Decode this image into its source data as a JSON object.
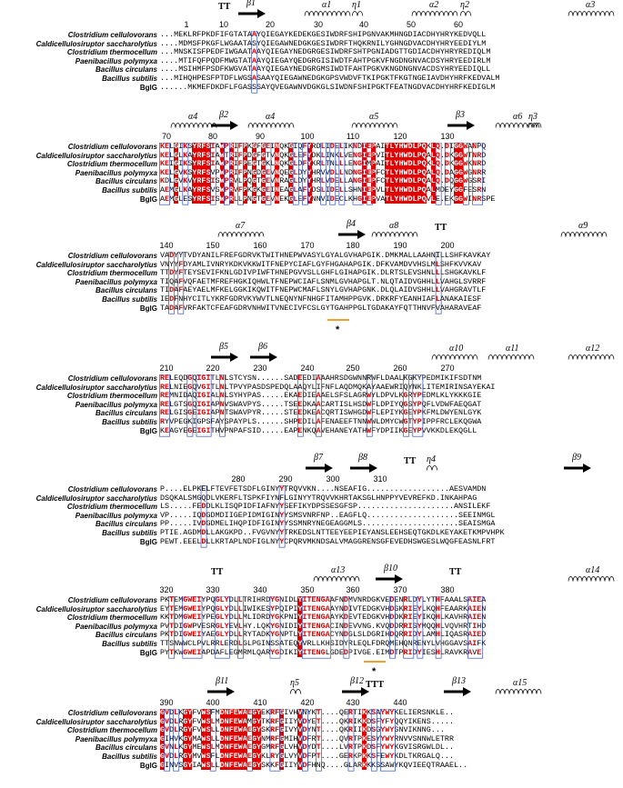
{
  "figure": {
    "species": [
      {
        "name": "Clostridium cellulovorans",
        "italic": true
      },
      {
        "name": "Caldicellulosiruptor saccharolytius",
        "italic": true
      },
      {
        "name": "Clostridium thermocellum",
        "italic": true
      },
      {
        "name": "Paenibacillus polymyxa",
        "italic": true
      },
      {
        "name": "Bacillus circulans",
        "italic": true
      },
      {
        "name": "Bacillus subtilis",
        "italic": true
      },
      {
        "name": "BglG",
        "italic": false
      }
    ],
    "colors": {
      "conserved_bg": "#e00000",
      "similar_fg": "#e00000",
      "box": "#3050c0",
      "marker_line": "#f0a030"
    },
    "blocks": [
      {
        "id": "block-1",
        "secondary_structure": [
          {
            "type": "turn",
            "label": "TT"
          },
          {
            "type": "strand",
            "label": "β1"
          },
          {
            "type": "helix",
            "label": "α1"
          },
          {
            "type": "eta",
            "label": "η1"
          },
          {
            "type": "helix",
            "label": "α2"
          },
          {
            "type": "eta",
            "label": "η2"
          },
          {
            "type": "helix",
            "label": "α3"
          }
        ],
        "numbers": [
          "1",
          "10",
          "20",
          "30",
          "40",
          "50",
          "60"
        ],
        "sequences": [
          "...MEKLRFPKDFIFGTATAAYQIEGAYKEDEKGESIWDRFSHIPGNVAKMHNGDIACDHYHRYKEDVQLL",
          "....MDMSFPKGFLWGAATASYQIEGAWNEDGKGESIWDRFTHQKRNILYGHNGDVACDHYHRYEEDIYLM",
          "...MNSKISFPEDFIWGAATAAYQIEGAYNEDGRGESIWDRFSHTPGNIADGTTGDIACDHYHRYREDIQLM",
          "....MTIFQFPQDFMWGTATAAYQIEGAYQEDGRGISIWDTFAHTPGKVFNGDNGNVACDSYHRYEEDIRLM",
          "....MSIHMFPSDFKWGVATAAYQIEGAYNEDGRGMSIWDTFAHTPGKVKNGDNGNVACDSYHRYEEDIQLL",
          "...MIHQHPESFPTDFLWGSASAAYQIEGAWNEDGKGPSVWDVFTKIPGKTFKGTNGEIAVDHYHRFKEDVALM",
          "......MKMEFDKDFLFGASSSAYQVEGAWNVDGKGLSIWDNFSHIPGKTFEATNGDVACDHYHRFKEDIGLM"
        ]
      },
      {
        "id": "block-2",
        "secondary_structure": [
          {
            "type": "helix",
            "label": "α4"
          },
          {
            "type": "strand",
            "label": "β2"
          },
          {
            "type": "helix",
            "label": "α4"
          },
          {
            "type": "helix",
            "label": "α5"
          },
          {
            "type": "strand",
            "label": "β3"
          },
          {
            "type": "helix",
            "label": "α6"
          },
          {
            "type": "eta",
            "label": "η3"
          }
        ],
        "numbers": [
          "70",
          "80",
          "90",
          "100",
          "110",
          "120",
          "130"
        ],
        "sequences": [
          "KELGIKSYRFSIAWPRIFPKGFGEINQKGIQFYRDLIDELIKNDIEPAITLYHWDLPQKLQ.DIGGWANPQ",
          "KELGLKAYRFSIAWTRIFPDGFGTVNQKGLEFYDKLINKLVENGIEPVITLYHWDLPQALQ.DKGGWTNRD",
          "KEIGIKSYRFSIAWPRIFPEGTGKLNQKGLDFYKRLTNLLLENGIMPAITLYHWDLPQKLQ.DKGGWKNRD",
          "KELGVKSYRFSVPWPRIFPNGDGEVNQEGLDYYHRVVDLLNDNGIEPFCTLYHWDLPQALQ.DAGGWGNRR",
          "KDLGVKVYRFSISWPRVLPQGTGEVNRAGLDYYHRLVDELLANGIEPFCTLYHWDLPQALQ.DQGGWGSRI",
          "AEMGLKAYRFSVSWPRVFPKGKGEINEAGLAFYDSLIDELLSHNIEPVLTLYHWDLPQALMDEYGGFESRN",
          "AEMGLESYRFSISWPRLLPNGTGEVNEKGLEFYNNVIDECLKHGIEPVATLYHWDLPQVLE.EKGGWINRSPE"
        ]
      },
      {
        "id": "block-3",
        "secondary_structure": [
          {
            "type": "helix",
            "label": "α7"
          },
          {
            "type": "strand",
            "label": "β4"
          },
          {
            "type": "helix",
            "label": "α8"
          },
          {
            "type": "turn",
            "label": "TT"
          },
          {
            "type": "helix",
            "label": "α9"
          }
        ],
        "numbers": [
          "140",
          "150",
          "160",
          "170",
          "180",
          "190",
          "200"
        ],
        "sequences": [
          "VADYYTVDYANILFREFGDRVKTWITHNEPWVASYLGYALGVHAPGIK.DMKMALLAAHNILLSHFKAVKAY",
          "VNYYFDYAMLIVNRYKDKVKKWITFNEPYCIAFLGYFHGAHAPGIK.DFKVAMDVVHSLMLSHFKVVKAV",
          "TTDYFTEYSEVIFKNLGDIVPIWFTHNEPGVVSLLGHFLGIHAPGIK.DLRTSLEVSHNLLLSHGKAVKLF",
          "TIQAFVQFAETMFREFHGKIQHWLTFNEPWCIAFLSNMLGVHAPGLT.NLQTAIDVGHHLLVAHGLSVRRF",
          "TIDAFAEYAELMFKELGGKIKQWITFNEPWCMAFLSNYLGVHAPGNK.DLQLAIDVSHHLLVAHGRAVTLF",
          "IEDFNHYCITLYKRFGDRVKYWVTLNEQNYNFNHGFITAMHPPGVK.DRKRFYEANHIAFLANAKAIESF",
          "TADAFVRFAKTCFEAFGDRVNHWITVNECIVFCSLGYTGAHPPGLTGDAKAYFQTTHNVFVAHARAVEAF"
        ]
      },
      {
        "id": "block-4",
        "secondary_structure": [
          {
            "type": "strand",
            "label": "β5"
          },
          {
            "type": "strand",
            "label": "β6"
          },
          {
            "type": "helix",
            "label": "α10"
          },
          {
            "type": "helix",
            "label": "α11"
          },
          {
            "type": "helix",
            "label": "α12"
          }
        ],
        "numbers": [
          "210",
          "220",
          "230",
          "240",
          "250",
          "260",
          "270"
        ],
        "sequences": [
          "RELEQDGQIGITLNLSTCYSN......SADEEDIAAAHRSDGWNNRWFLDAALKGKYPEDMIKIFSDTNM",
          "RELNIEGQVGITLNLTPVYPASDSPEDQLAAQYLIFNFLAQDMQKAYAAEWRIQYNKLITEMIRINSAYEKAI",
          "REMNIDAQIGIALNLSYHYPAS.....EKAEDIEAAELSFSLAGRWYLDPVLKGRYPEDMLKLYKKKGIE",
          "RELGTSGQIGIAPNVSWAVPYS.....TSEEDKAACARTISLHSDWFLDPIYQGSYPQFLVDWFAEQGAT",
          "RELGISGEIGIAPNTSWAVPYR.....STEEDKEACQRTISWHGDWFLEPIYKGEYPKFMLDWYENLGYK",
          "RYVPEGKIGPSFAYSPAYPLS......SHPEDILAFENAEEFTNNWWLDMYCWGTYPIPPFRCLEKQGWA",
          "KEAGYEGEIGITHVPNPAFSID.....EAPENKQAVEHANEYATHWFYDPIIKGEYPVVKKDLEKQGLL"
        ]
      },
      {
        "id": "block-5",
        "secondary_structure": [
          {
            "type": "strand",
            "label": "β7"
          },
          {
            "type": "strand",
            "label": "β8"
          },
          {
            "type": "turn",
            "label": "TT"
          },
          {
            "type": "eta",
            "label": "η4"
          },
          {
            "type": "strand",
            "label": "β9"
          }
        ],
        "numbers": [
          "280",
          "290",
          "300",
          "310"
        ],
        "sequences": [
          "P....ELPKELFTEVFETSDFLGINYYTRQVVKN....NSEAFIG..................AESVAMDN",
          "DSQKALSMGQDLVKERFLTSPKFIYNFLGINYYTRQVVKHRTAKSGLHNPPYVEVREFKD.INKAHPAG",
          "LS.....FEDDLKLISQPIDFIAFNYYSEFIKYDPSSESGFSP.....................ANSILEKF",
          "VP.....IQDGDMDIIGEPIDMIGINYYSMSVNRFNP..EAGFLQ....................SEEINMGL",
          "PP.....IVDGDMELIHQPIDFIGINYYSSMNRYNEGEAGGMLS.....................SEAISMGA",
          "PTIE.AGDMDLLAKGKPD..FVGVNYYTRKEDSLNTTEEYEEPIEYANSLEEHSEQTGKDLKEYAKETKMPVHPK",
          "PEWT.EEELDLLKRTAPLNDFIGLNYYCPQRVMKNDSALVMAGGRENSGFEVEDHSWGESLWQGFEASNLFRT"
        ]
      },
      {
        "id": "block-6",
        "secondary_structure": [
          {
            "type": "turn",
            "label": "TT"
          },
          {
            "type": "helix",
            "label": "α13"
          },
          {
            "type": "strand",
            "label": "β10"
          },
          {
            "type": "turn",
            "label": "TT"
          },
          {
            "type": "helix",
            "label": "α14"
          }
        ],
        "numbers": [
          "320",
          "330",
          "340",
          "350",
          "360",
          "370",
          "380"
        ],
        "sequences": [
          "PKTEMGWEIYPQGLYDLLTRIHRDYGNIDLYITENGAAFNDMVNRDGKVEDENRLDYLYTHFAAALSAIEA",
          "EYTEMGWEIYPQGLYDLLIWIKESYPQIPIYITENGAAYNDIVTEDGKVHDSKRIEYLKQHFEAARKAIEN",
          "KKTDMGWEIYPEGLYDLLMLIDRDYGKPNIYITENGAAYKDEVTEDGKVHDDKRIEYIKQHLKAVHRAIEN",
          "PVTDIGWPVESRGLYEVLHY.LQKYGNIDIYITENGACINDEVVNG.KVQDDRRISYMQQHLVQVHRTIHD",
          "PKTDIGWEIYAEGLYDLLRYTADKYGNPTLYITENGACYNDGLSLDGRIHDQRRIDYLAMHLIQASRAIED",
          "TTSNWWCLPVLRRLERDLGLPGINSSATEQYVRLLKHSIDYRLEQLFDRQMEHQNRENYLVHGGAVSAIFK",
          "PYTKWGWEIAPDAFLEGMRMLQARYGDIKIYITENGLGDEDPIVGE.EIMDTPRIDYIESHLRAVKRAVE"
        ]
      },
      {
        "id": "block-7",
        "secondary_structure": [
          {
            "type": "strand",
            "label": "β11"
          },
          {
            "type": "eta",
            "label": "η5"
          },
          {
            "type": "strand",
            "label": "β12"
          },
          {
            "type": "turn",
            "label": "TTT"
          },
          {
            "type": "strand",
            "label": "β13"
          },
          {
            "type": "helix",
            "label": "α15"
          }
        ],
        "numbers": [
          "390",
          "400",
          "410",
          "420",
          "430",
          "440"
        ],
        "sequences": [
          "GVDLKGYFVWSFMDNFEWAEGYEKRFGIVHVNYKT....QERTIKKSAYWYKELIERSNKLE..",
          "GVDLRGYFVWSLMDNFEWAMGYTKRFGIIYVDYET....QKRIKKDSFYFYQQYIKENS.....",
          "GVDLRGYFVWSLLDNFEWAEGYSKRFGIVYVDYNT....QKRIIKDSGYWYSNVIKNNG...",
          "GIHVKGYMAWSLLDNFEWAEGYNMRFGMIHVDFRT....QVRTPKESYYWYRNVVSNNWLETRR",
          "GVNLKGYMEWSLMDNFEWAEGYGMRFGLVHVDYDT....LVRTPKDSFYWYKGVISRGWLDL..",
          "GVDLRGYMVWSFLDNFEWAEGYKLRYGLVYVDFPT....GERKPKKSFEWYKDLTKRGALQ...",
          "GINVSGYIAWSLLDNFEWAEGYSKKFGIIYVDFHNQ....GLARKKKSSAWYKQVIEEQTRAAEL.."
        ]
      }
    ],
    "markers": [
      {
        "label": "*",
        "block": "block-3"
      },
      {
        "label": "*",
        "block": "block-6"
      }
    ]
  }
}
